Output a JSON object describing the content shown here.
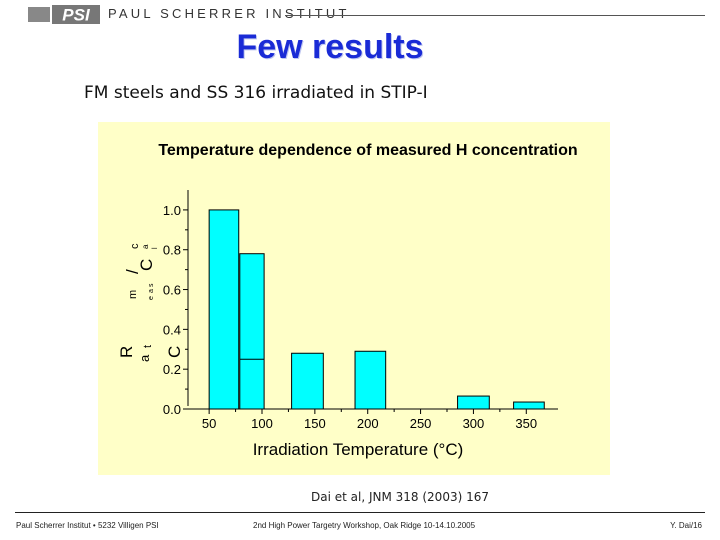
{
  "header": {
    "logo_text": "PSI",
    "institute": "PAUL SCHERRER INSTITUT"
  },
  "slide": {
    "title": "Few results",
    "subtitle": "FM steels and SS 316 irradiated in STIP-I",
    "citation": "Dai et al,  JNM 318 (2003) 167"
  },
  "footer": {
    "left": "Paul Scherrer Institut • 5232 Villigen PSI",
    "center": "2nd High Power Targetry Workshop, Oak Ridge 10-14.10.2005",
    "right": "Y. Dai/16"
  },
  "colors": {
    "title": "#1a2bd6",
    "panel": "#ffffc8",
    "bar": "#00ffff"
  },
  "chart_data": {
    "type": "bar",
    "title": "Temperature dependence of measured H concentration",
    "xlabel": "Irradiation Temperature (°C)",
    "ylabel_fragments": [
      "R",
      "a",
      "t",
      "C",
      "m",
      "e",
      "a",
      "s",
      "/",
      "C",
      "c",
      "a",
      "l"
    ],
    "x_ticks": [
      50,
      100,
      150,
      200,
      250,
      300,
      350
    ],
    "y_ticks": [
      "0.0",
      "0.2",
      "0.4",
      "0.6",
      "0.8",
      "1.0"
    ],
    "xlim": [
      30,
      380
    ],
    "ylim": [
      0,
      1.1
    ],
    "grid": false,
    "bars": [
      {
        "x0": 50,
        "x1": 78,
        "value": 1.0
      },
      {
        "x0": 79,
        "x1": 102,
        "value": 0.78,
        "inner_mark": 0.25
      },
      {
        "x0": 128,
        "x1": 158,
        "value": 0.28
      },
      {
        "x0": 188,
        "x1": 217,
        "value": 0.29
      },
      {
        "x0": 285,
        "x1": 315,
        "value": 0.065
      },
      {
        "x0": 338,
        "x1": 367,
        "value": 0.035
      }
    ]
  }
}
